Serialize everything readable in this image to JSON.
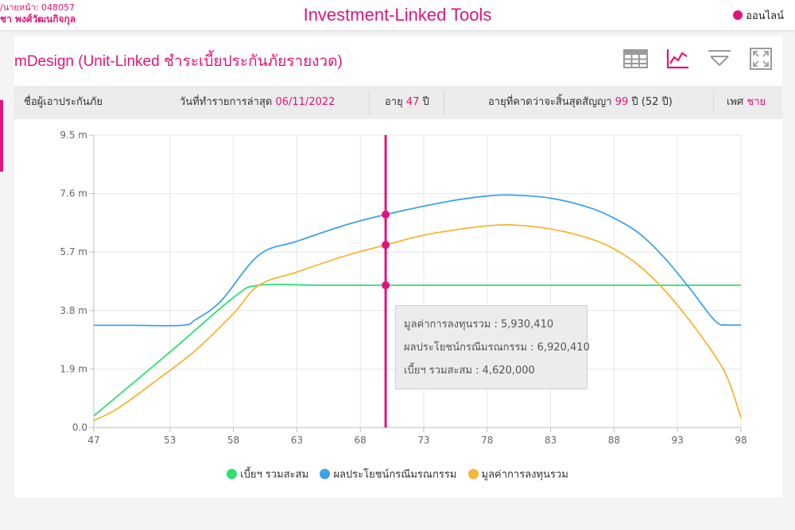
{
  "header": {
    "agent_code_line": "/นายหน้า: 048057",
    "agent_name_line": "ชา  พงศ์วัฒนกิจกุล",
    "app_title": "Investment-Linked Tools",
    "status_label": "ออนไลน์"
  },
  "product": {
    "title": "mDesign (Unit-Linked ชำระเบี้ยประกันภัยรายงวด)"
  },
  "toolbar": {
    "icons": [
      "table-icon",
      "line-chart-icon",
      "filter-icon",
      "fullscreen-icon"
    ],
    "active": "line-chart-icon"
  },
  "info": {
    "insured_label": "ชื่อผู้เอาประกันภัย",
    "date_label": "วันที่ทำรายการล่าสุด",
    "date_value": "06/11/2022",
    "age_label": "อายุ",
    "age_value": "47",
    "age_unit": "ปี",
    "end_age_label": "อายุที่คาดว่าจะสิ้นสุดสัญญา",
    "end_age_value": "99",
    "end_age_unit": "ปี (52 ปี)",
    "gender_label": "เพศ",
    "gender_value": "ชาย"
  },
  "colors": {
    "brand": "#e0157a",
    "premium": "#2ee072",
    "death_benefit": "#3fa2ea",
    "investment_value": "#f5b634"
  },
  "chart_data": {
    "type": "line",
    "x_ticks": [
      "47",
      "53",
      "58",
      "63",
      "68",
      "73",
      "78",
      "83",
      "88",
      "93",
      "98"
    ],
    "y_ticks": [
      "0.0",
      "1.9 m",
      "3.8 m",
      "5.7 m",
      "7.6 m",
      "9.5 m"
    ],
    "xlim": [
      47,
      98
    ],
    "ylim": [
      0,
      9.5
    ],
    "grid": true,
    "legend_position": "bottom",
    "series": [
      {
        "name": "เบี้ยฯ รวมสะสม",
        "color": "#2ee072",
        "points": [
          [
            47,
            0.38
          ],
          [
            53,
            2.45
          ],
          [
            58,
            4.22
          ],
          [
            60,
            4.62
          ],
          [
            65,
            4.62
          ],
          [
            70,
            4.62
          ],
          [
            75,
            4.62
          ],
          [
            80,
            4.62
          ],
          [
            85,
            4.62
          ],
          [
            90,
            4.62
          ],
          [
            95,
            4.62
          ],
          [
            98,
            4.62
          ]
        ]
      },
      {
        "name": "ผลประโยชน์กรณีมรณกรรม",
        "color": "#3fa2ea",
        "points": [
          [
            47,
            3.32
          ],
          [
            50,
            3.32
          ],
          [
            54,
            3.32
          ],
          [
            55,
            3.5
          ],
          [
            57,
            4.1
          ],
          [
            60,
            5.6
          ],
          [
            63,
            6.05
          ],
          [
            67,
            6.6
          ],
          [
            70,
            6.92
          ],
          [
            75,
            7.35
          ],
          [
            78,
            7.52
          ],
          [
            80,
            7.55
          ],
          [
            83,
            7.45
          ],
          [
            86,
            7.15
          ],
          [
            88,
            6.8
          ],
          [
            90,
            6.3
          ],
          [
            92,
            5.5
          ],
          [
            94,
            4.5
          ],
          [
            96,
            3.45
          ],
          [
            97,
            3.33
          ],
          [
            98,
            3.33
          ]
        ]
      },
      {
        "name": "มูลค่าการลงทุนรวม",
        "color": "#f5b634",
        "points": [
          [
            47,
            0.22
          ],
          [
            49,
            0.65
          ],
          [
            52,
            1.55
          ],
          [
            55,
            2.5
          ],
          [
            58,
            3.7
          ],
          [
            60,
            4.62
          ],
          [
            63,
            5.05
          ],
          [
            67,
            5.6
          ],
          [
            70,
            5.93
          ],
          [
            73,
            6.25
          ],
          [
            76,
            6.45
          ],
          [
            78,
            6.55
          ],
          [
            80,
            6.58
          ],
          [
            83,
            6.45
          ],
          [
            86,
            6.15
          ],
          [
            88,
            5.8
          ],
          [
            90,
            5.25
          ],
          [
            92,
            4.45
          ],
          [
            94,
            3.45
          ],
          [
            96,
            2.3
          ],
          [
            97,
            1.55
          ],
          [
            98,
            0.32
          ]
        ]
      }
    ],
    "crosshair_x": 70,
    "tooltip": [
      "มูลค่าการลงทุนรวม : 5,930,410",
      "ผลประโยชน์กรณีมรณกรรม : 6,920,410",
      "เบี้ยฯ รวมสะสม : 4,620,000"
    ],
    "marker_values": [
      6.92,
      5.93,
      4.62
    ]
  }
}
